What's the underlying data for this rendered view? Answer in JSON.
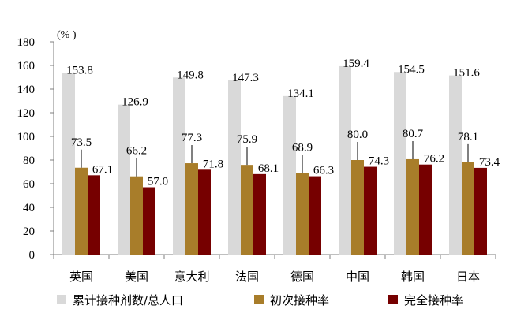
{
  "chart_data": {
    "type": "bar",
    "unit_label": "(% )",
    "categories": [
      "英国",
      "美国",
      "意大利",
      "法国",
      "德国",
      "中国",
      "韩国",
      "日本"
    ],
    "series": [
      {
        "name": "累计接种剂数/总人口",
        "color": "#d9d9d9",
        "values": [
          153.8,
          126.9,
          149.8,
          147.3,
          134.1,
          159.4,
          154.5,
          151.6
        ],
        "labels": [
          "153.8",
          "126.9",
          "149.8",
          "147.3",
          "134.1",
          "159.4",
          "154.5",
          "151.6"
        ]
      },
      {
        "name": "初次接种率",
        "color": "#a87d2a",
        "values": [
          73.5,
          66.2,
          77.3,
          75.9,
          68.9,
          80.0,
          80.7,
          78.1
        ],
        "labels": [
          "73.5",
          "66.2",
          "77.3",
          "75.9",
          "68.9",
          "80.0",
          "80.7",
          "78.1"
        ]
      },
      {
        "name": "完全接种率",
        "color": "#760000",
        "values": [
          67.1,
          57.0,
          71.8,
          68.1,
          66.3,
          74.3,
          76.2,
          73.4
        ],
        "labels": [
          "67.1",
          "57.0",
          "71.8",
          "68.1",
          "66.3",
          "74.3",
          "76.2",
          "73.4"
        ]
      }
    ],
    "y_ticks": [
      "0",
      "20",
      "40",
      "60",
      "80",
      "100",
      "120",
      "140",
      "160",
      "180"
    ],
    "ylim": [
      0,
      180
    ],
    "grid": false,
    "legend_position": "bottom"
  }
}
